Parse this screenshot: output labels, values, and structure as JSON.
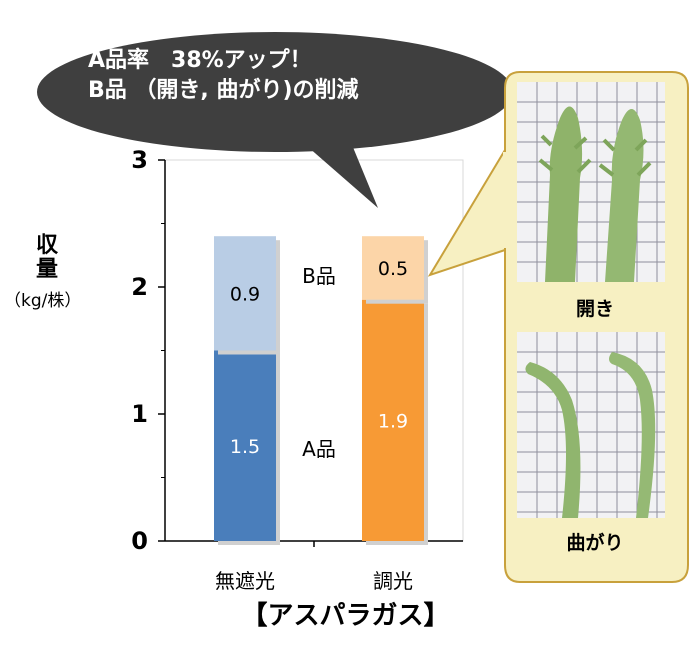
{
  "callout": {
    "line1": "A品率　38%アップ！",
    "line2": "B品 （開き, 曲がり)の削減",
    "color": "#3f3f3f"
  },
  "y_axis": {
    "label": "収量",
    "unit": "（kg/株）"
  },
  "photos": {
    "top_caption": "開き",
    "bottom_caption": "曲がり",
    "panel_color": "#f7f0c2",
    "border_color": "#c8a13c"
  },
  "chart_title": "【アスパラガス】",
  "chart_data": {
    "type": "bar",
    "stacked": true,
    "categories": [
      "無遮光",
      "調光"
    ],
    "series": [
      {
        "name": "A品",
        "values": [
          1.5,
          1.9
        ],
        "colors": [
          "#4a7ebb",
          "#f79a35"
        ]
      },
      {
        "name": "B品",
        "values": [
          0.9,
          0.5
        ],
        "colors": [
          "#b9cde5",
          "#fcd5a8"
        ]
      }
    ],
    "data_labels": [
      [
        "1.5",
        "1.9"
      ],
      [
        "0.9",
        "0.5"
      ]
    ],
    "ylim": [
      0,
      3
    ],
    "yticks": [
      "0",
      "1",
      "2",
      "3"
    ],
    "legend": "inline between bars"
  }
}
